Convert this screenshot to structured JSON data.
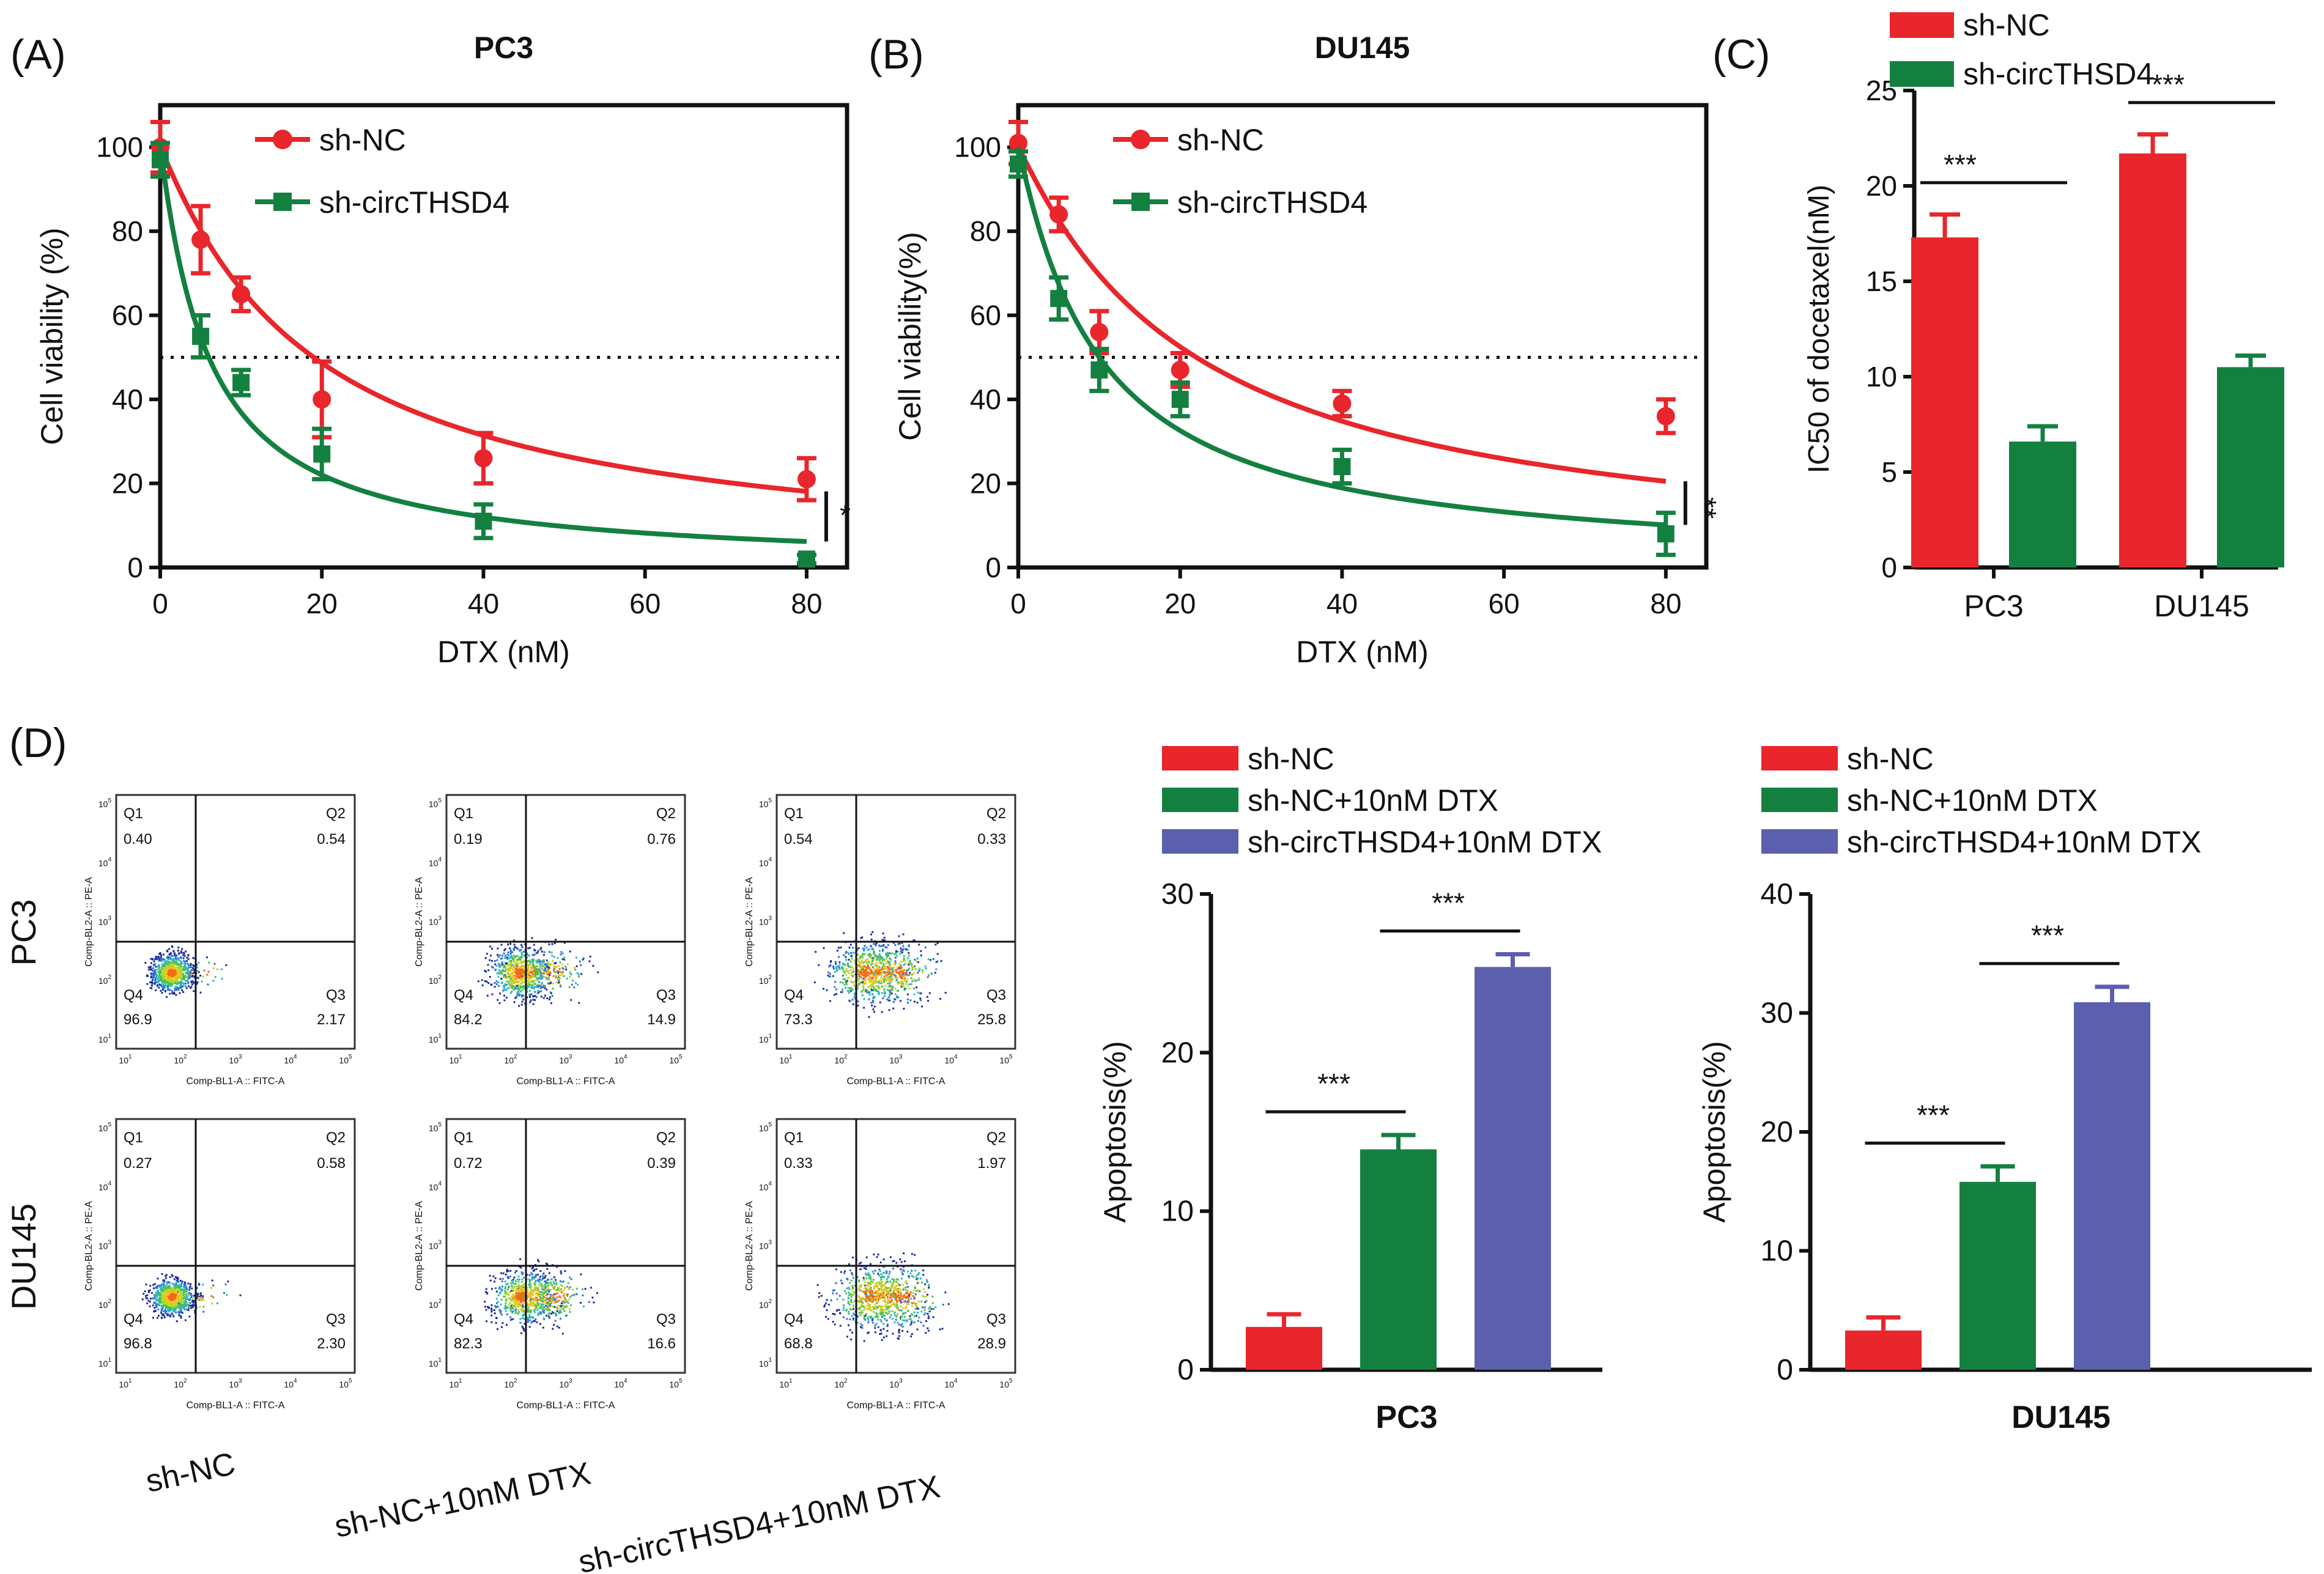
{
  "colors": {
    "red": "#e8262b",
    "green": "#148040",
    "blue": "#5b5fae",
    "black": "#111111"
  },
  "chart_data": [
    {
      "id": "A",
      "panel_label": "(A)",
      "type": "line",
      "title": "PC3",
      "xlabel": "DTX (nM)",
      "ylabel": "Cell viability (%)",
      "xlim": [
        0,
        85
      ],
      "ylim": [
        0,
        110
      ],
      "xticks": [
        "0",
        "20",
        "40",
        "60",
        "80"
      ],
      "yticks": [
        "0",
        "20",
        "40",
        "60",
        "80",
        "100"
      ],
      "reference_line": 50,
      "significance": "*",
      "series": [
        {
          "name": "sh-NC",
          "color": "#e8262b",
          "marker": "circle",
          "ic50": 19,
          "x": [
            0,
            5,
            10,
            20,
            40,
            80
          ],
          "y": [
            100,
            78,
            65,
            40,
            26,
            21
          ],
          "err": [
            6,
            8,
            4,
            9,
            6,
            5
          ]
        },
        {
          "name": "sh-circTHSD4",
          "color": "#148040",
          "marker": "square",
          "ic50": 6,
          "x": [
            0,
            5,
            10,
            20,
            40,
            80
          ],
          "y": [
            97,
            55,
            44,
            27,
            11,
            2
          ],
          "err": [
            4,
            5,
            3,
            6,
            4,
            1
          ]
        }
      ]
    },
    {
      "id": "B",
      "panel_label": "(B)",
      "type": "line",
      "title": "DU145",
      "xlabel": "DTX (nM)",
      "ylabel": "Cell viability(%)",
      "xlim": [
        0,
        85
      ],
      "ylim": [
        0,
        110
      ],
      "xticks": [
        "0",
        "20",
        "40",
        "60",
        "80"
      ],
      "yticks": [
        "0",
        "20",
        "40",
        "60",
        "80",
        "100"
      ],
      "reference_line": 50,
      "significance": "**",
      "series": [
        {
          "name": "sh-NC",
          "color": "#e8262b",
          "marker": "circle",
          "ic50": 22,
          "x": [
            0,
            5,
            10,
            20,
            40,
            80
          ],
          "y": [
            101,
            84,
            56,
            47,
            39,
            36
          ],
          "err": [
            5,
            4,
            5,
            4,
            3,
            4
          ]
        },
        {
          "name": "sh-circTHSD4",
          "color": "#148040",
          "marker": "square",
          "ic50": 10,
          "x": [
            0,
            5,
            10,
            20,
            40,
            80
          ],
          "y": [
            96,
            64,
            47,
            40,
            24,
            8
          ],
          "err": [
            3,
            5,
            5,
            4,
            4,
            5
          ]
        }
      ]
    },
    {
      "id": "C",
      "panel_label": "(C)",
      "type": "bar",
      "title": "",
      "xlabel": "",
      "ylabel": "IC50 of docetaxel(nM)",
      "ylim": [
        0,
        25
      ],
      "yticks": [
        "0",
        "5",
        "10",
        "15",
        "20",
        "25"
      ],
      "categories": [
        "PC3",
        "DU145"
      ],
      "series": [
        {
          "name": "sh-NC",
          "color": "#e8262b",
          "values": [
            17.3,
            21.7
          ],
          "err": [
            1.2,
            1.0
          ]
        },
        {
          "name": "sh-circTHSD4",
          "color": "#148040",
          "values": [
            6.6,
            10.5
          ],
          "err": [
            0.8,
            0.6
          ]
        }
      ],
      "significance": [
        "***",
        "***"
      ]
    },
    {
      "id": "D_PC3",
      "type": "bar",
      "title": "PC3",
      "xlabel": "PC3",
      "ylabel": "Apoptosis(%)",
      "ylim": [
        0,
        30
      ],
      "yticks": [
        "0",
        "10",
        "20",
        "30"
      ],
      "categories": [
        "sh-NC",
        "sh-NC+10nM DTX",
        "sh-circTHSD4+10nM DTX"
      ],
      "values": [
        2.7,
        13.9,
        25.4
      ],
      "err": [
        0.8,
        0.9,
        0.8
      ],
      "bar_colors": [
        "#e8262b",
        "#148040",
        "#5b5fae"
      ],
      "significance": [
        "***",
        "***"
      ]
    },
    {
      "id": "D_DU145",
      "type": "bar",
      "title": "DU145",
      "xlabel": "DU145",
      "ylabel": "Apoptosis(%)",
      "ylim": [
        0,
        40
      ],
      "yticks": [
        "0",
        "10",
        "20",
        "30",
        "40"
      ],
      "categories": [
        "sh-NC",
        "sh-NC+10nM DTX",
        "sh-circTHSD4+10nM DTX"
      ],
      "values": [
        3.3,
        15.8,
        30.9
      ],
      "err": [
        1.1,
        1.3,
        1.3
      ],
      "bar_colors": [
        "#e8262b",
        "#148040",
        "#5b5fae"
      ],
      "significance": [
        "***",
        "***"
      ]
    }
  ],
  "flow": {
    "panel_label": "(D)",
    "row_labels": [
      "PC3",
      "DU145"
    ],
    "col_labels": [
      "sh-NC",
      "sh-NC+10nM DTX",
      "sh-circTHSD4+10nM DTX"
    ],
    "x_axis_label": "Comp-BL1-A :: FITC-A",
    "y_axis_label": "Comp-BL2-A :: PE-A",
    "tick_exponents": [
      "1",
      "2",
      "3",
      "4",
      "5"
    ],
    "quadrant_names": [
      "Q1",
      "Q2",
      "Q3",
      "Q4"
    ],
    "plots": [
      {
        "row": 0,
        "col": 0,
        "q1": "0.40",
        "q2": "0.54",
        "q3": "2.17",
        "q4": "96.9"
      },
      {
        "row": 0,
        "col": 1,
        "q1": "0.19",
        "q2": "0.76",
        "q3": "14.9",
        "q4": "84.2"
      },
      {
        "row": 0,
        "col": 2,
        "q1": "0.54",
        "q2": "0.33",
        "q3": "25.8",
        "q4": "73.3"
      },
      {
        "row": 1,
        "col": 0,
        "q1": "0.27",
        "q2": "0.58",
        "q3": "2.30",
        "q4": "96.8"
      },
      {
        "row": 1,
        "col": 1,
        "q1": "0.72",
        "q2": "0.39",
        "q3": "16.6",
        "q4": "82.3"
      },
      {
        "row": 1,
        "col": 2,
        "q1": "0.33",
        "q2": "1.97",
        "q3": "28.9",
        "q4": "68.8"
      }
    ]
  }
}
